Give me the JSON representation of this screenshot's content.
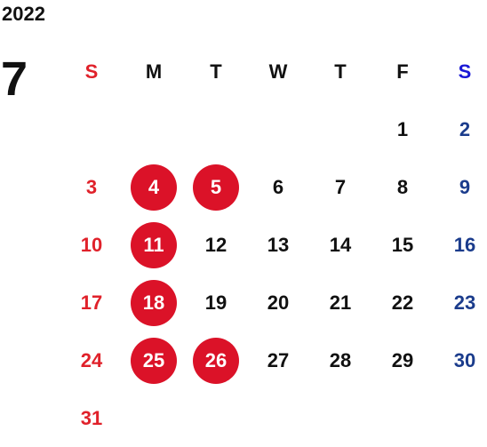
{
  "calendar": {
    "year": "2022",
    "month": "7",
    "weekdays": [
      "S",
      "M",
      "T",
      "W",
      "T",
      "F",
      "S"
    ],
    "start_offset": 5,
    "days": [
      "1",
      "2",
      "3",
      "4",
      "5",
      "6",
      "7",
      "8",
      "9",
      "10",
      "11",
      "12",
      "13",
      "14",
      "15",
      "16",
      "17",
      "18",
      "19",
      "20",
      "21",
      "22",
      "23",
      "24",
      "25",
      "26",
      "27",
      "28",
      "29",
      "30",
      "31"
    ],
    "highlighted_days": [
      "4",
      "5",
      "11",
      "18",
      "25",
      "26"
    ],
    "colors": {
      "sunday": "#e0212a",
      "saturday": "#1b3c8c",
      "weekday": "#111111",
      "highlight": "#db1228"
    }
  }
}
